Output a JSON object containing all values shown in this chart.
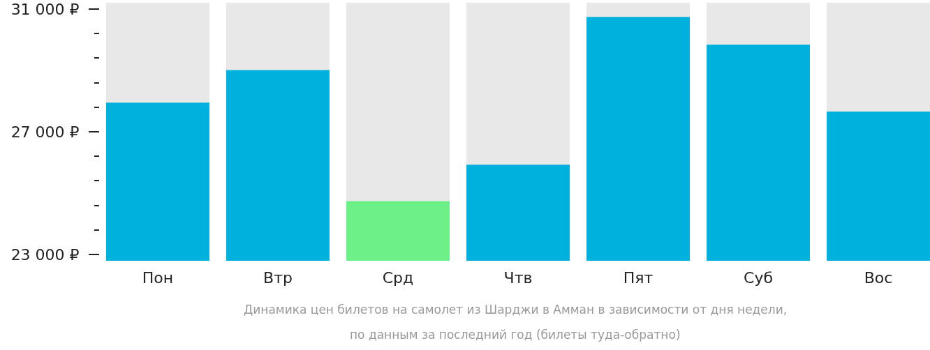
{
  "chart_data": {
    "type": "bar",
    "categories": [
      "Пон",
      "Втр",
      "Срд",
      "Чтв",
      "Пят",
      "Суб",
      "Вос"
    ],
    "values": [
      27950,
      29010,
      24740,
      25930,
      30740,
      29840,
      27660
    ],
    "colors": [
      "#00b0dd",
      "#00b0dd",
      "#6cf087",
      "#00b0dd",
      "#00b0dd",
      "#00b0dd",
      "#00b0dd"
    ],
    "ylim": [
      22800,
      31200
    ],
    "yticks": [
      {
        "value": 23000,
        "label": "23 000 ₽"
      },
      {
        "value": 23800,
        "label": null
      },
      {
        "value": 24600,
        "label": null
      },
      {
        "value": 25400,
        "label": null
      },
      {
        "value": 26200,
        "label": null
      },
      {
        "value": 27000,
        "label": "27 000 ₽"
      },
      {
        "value": 27800,
        "label": null
      },
      {
        "value": 28600,
        "label": null
      },
      {
        "value": 29400,
        "label": null
      },
      {
        "value": 30200,
        "label": null
      },
      {
        "value": 31000,
        "label": "31 000 ₽"
      }
    ],
    "annotations": [
      "Динамика цен билетов на самолет из Шарджи в Амман в зависимости от дня недели,",
      "по данным за последний год (билеты туда-обратно)"
    ]
  }
}
